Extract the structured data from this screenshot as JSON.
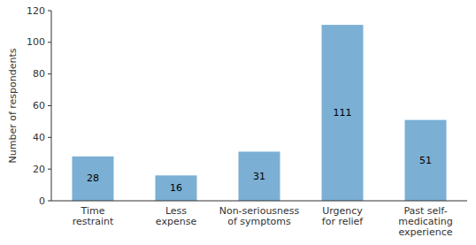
{
  "chart_data": {
    "type": "bar",
    "categories": [
      "Time\nrestraint",
      "Less\nexpense",
      "Non-seriousness\nof symptoms",
      "Urgency\nfor relief",
      "Past self-\nmedicating\nexperience"
    ],
    "values": [
      28,
      16,
      31,
      111,
      51
    ],
    "color": "#7BAFD4",
    "ylabel": "Number of respondents",
    "ylim": [
      0,
      120
    ],
    "yticks": [
      0,
      20,
      40,
      60,
      80,
      100,
      120
    ],
    "data_labels": true,
    "grid": false
  }
}
